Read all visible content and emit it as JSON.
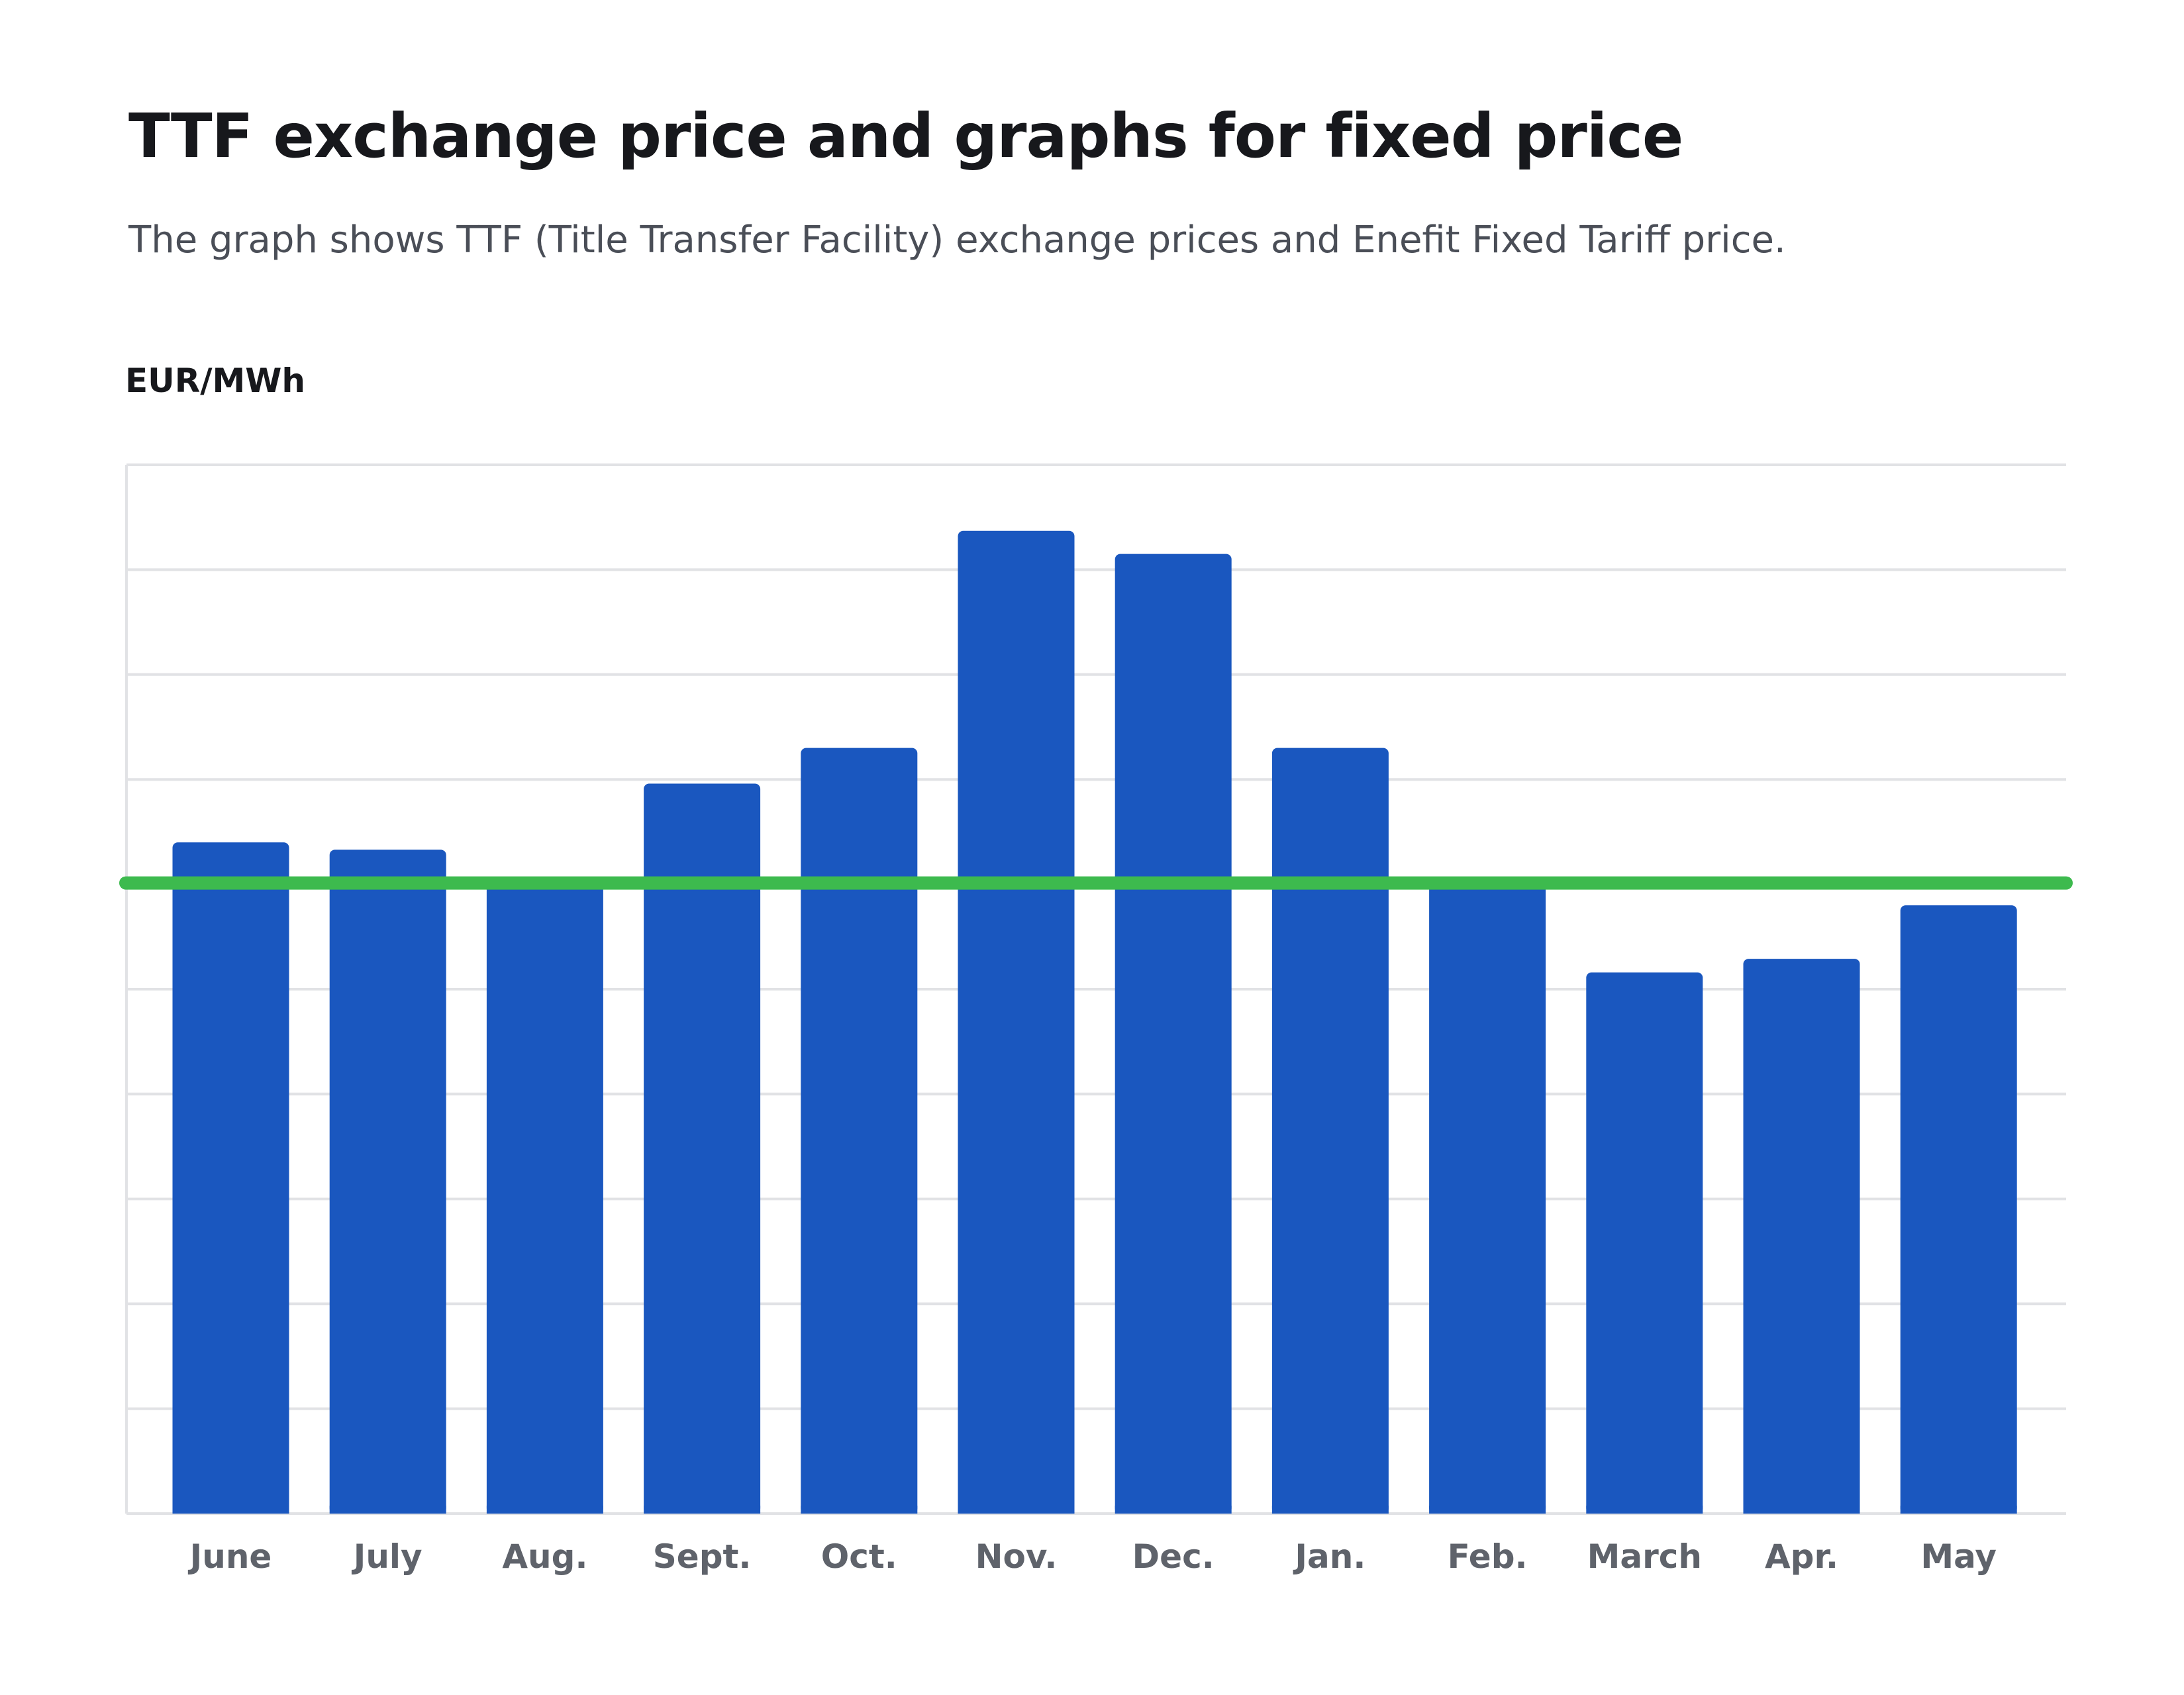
{
  "title": "TTF exchange price and graphs for fixed price",
  "subtitle": "The graph shows TTF (Title Transfer Facility) exchange prices and Enefit Fixed Tariff price.",
  "colors": {
    "bar": "#1a57bf",
    "fixed_line": "#3dba4e",
    "grid": "#e1e2e5",
    "tick_text": "#5f636b"
  },
  "chart_data": {
    "type": "bar",
    "ylabel": "EUR/MWh",
    "categories": [
      "June",
      "July",
      "Aug.",
      "Sept.",
      "Oct.",
      "Nov.",
      "Dec.",
      "Jan.",
      "Feb.",
      "March",
      "Apr.",
      "May"
    ],
    "series": [
      {
        "values": [
          6.4,
          6.33,
          6.0,
          6.96,
          7.3,
          9.37,
          9.15,
          7.3,
          6.0,
          5.16,
          5.29,
          5.8
        ]
      }
    ],
    "reference_line": {
      "value": 6.0
    },
    "ylim": [
      0,
      10
    ],
    "y_ticks_labeled": false,
    "grid": true,
    "legend": false
  }
}
